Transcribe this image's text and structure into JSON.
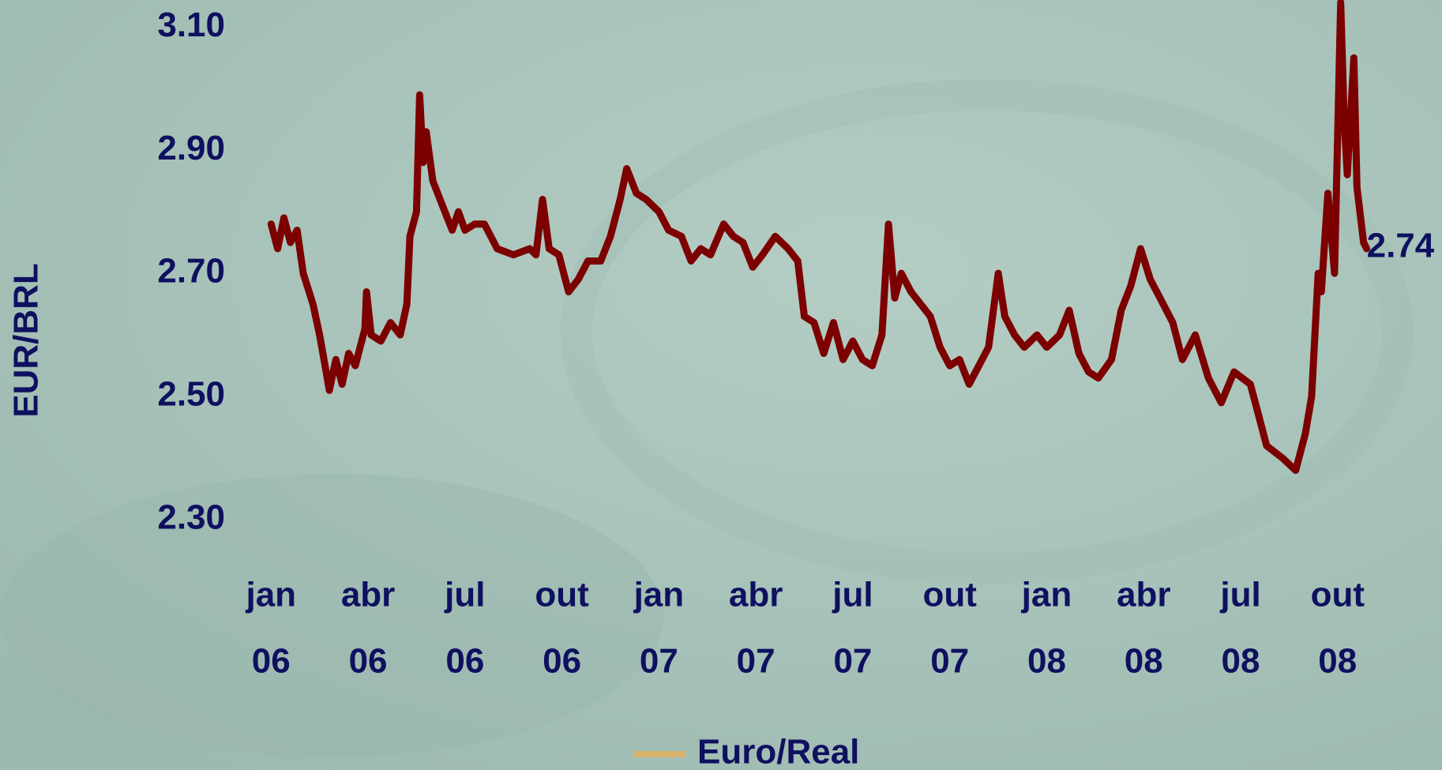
{
  "chart_data": {
    "type": "line",
    "y_label": "EUR/BRL",
    "x": [
      2006.0,
      2006.017,
      2006.033,
      2006.05,
      2006.067,
      2006.083,
      2006.108,
      2006.125,
      2006.142,
      2006.15,
      2006.167,
      2006.183,
      2006.2,
      2006.217,
      2006.242,
      2006.246,
      2006.258,
      2006.283,
      2006.308,
      2006.333,
      2006.35,
      2006.358,
      2006.375,
      2006.383,
      2006.392,
      2006.4,
      2006.417,
      2006.442,
      2006.467,
      2006.483,
      2006.5,
      2006.525,
      2006.55,
      2006.583,
      2006.625,
      2006.667,
      2006.683,
      2006.7,
      2006.717,
      2006.742,
      2006.767,
      2006.792,
      2006.817,
      2006.85,
      2006.875,
      2006.9,
      2006.917,
      2006.942,
      2006.967,
      2007.0,
      2007.025,
      2007.058,
      2007.083,
      2007.108,
      2007.133,
      2007.167,
      2007.192,
      2007.217,
      2007.242,
      2007.267,
      2007.3,
      2007.333,
      2007.358,
      2007.375,
      2007.4,
      2007.425,
      2007.45,
      2007.475,
      2007.5,
      2007.525,
      2007.55,
      2007.575,
      2007.592,
      2007.608,
      2007.625,
      2007.65,
      2007.675,
      2007.7,
      2007.725,
      2007.75,
      2007.775,
      2007.8,
      2007.825,
      2007.85,
      2007.875,
      2007.892,
      2007.917,
      2007.942,
      2007.975,
      2008.0,
      2008.033,
      2008.058,
      2008.083,
      2008.108,
      2008.133,
      2008.167,
      2008.192,
      2008.217,
      2008.242,
      2008.267,
      2008.292,
      2008.325,
      2008.35,
      2008.383,
      2008.417,
      2008.45,
      2008.483,
      2008.525,
      2008.542,
      2008.567,
      2008.608,
      2008.642,
      2008.667,
      2008.683,
      2008.7,
      2008.708,
      2008.725,
      2008.742,
      2008.758,
      2008.767,
      2008.775,
      2008.792,
      2008.8,
      2008.817,
      2008.825
    ],
    "series": [
      {
        "name": "Euro/Real",
        "color": "#7c0000",
        "legend_color": "#d9b36c",
        "values": [
          2.78,
          2.74,
          2.79,
          2.75,
          2.77,
          2.7,
          2.65,
          2.6,
          2.54,
          2.51,
          2.56,
          2.52,
          2.57,
          2.55,
          2.61,
          2.67,
          2.6,
          2.59,
          2.62,
          2.6,
          2.65,
          2.76,
          2.8,
          2.99,
          2.88,
          2.93,
          2.85,
          2.81,
          2.77,
          2.8,
          2.77,
          2.78,
          2.78,
          2.74,
          2.73,
          2.74,
          2.73,
          2.82,
          2.74,
          2.73,
          2.67,
          2.69,
          2.72,
          2.72,
          2.76,
          2.82,
          2.87,
          2.83,
          2.82,
          2.8,
          2.77,
          2.76,
          2.72,
          2.74,
          2.73,
          2.78,
          2.76,
          2.75,
          2.71,
          2.73,
          2.76,
          2.74,
          2.72,
          2.63,
          2.62,
          2.57,
          2.62,
          2.56,
          2.59,
          2.56,
          2.55,
          2.6,
          2.78,
          2.66,
          2.7,
          2.67,
          2.65,
          2.63,
          2.58,
          2.55,
          2.56,
          2.52,
          2.55,
          2.58,
          2.7,
          2.63,
          2.6,
          2.58,
          2.6,
          2.58,
          2.6,
          2.64,
          2.57,
          2.54,
          2.53,
          2.56,
          2.64,
          2.68,
          2.74,
          2.69,
          2.66,
          2.62,
          2.56,
          2.6,
          2.53,
          2.49,
          2.54,
          2.52,
          2.48,
          2.42,
          2.4,
          2.38,
          2.44,
          2.5,
          2.7,
          2.67,
          2.83,
          2.7,
          3.14,
          2.95,
          2.86,
          3.05,
          2.84,
          2.75,
          2.74
        ]
      }
    ],
    "end_label": true,
    "xlim": [
      2005.92,
      2008.95
    ],
    "xticks": [
      {
        "value": 2006.0,
        "label": [
          "jan",
          "06"
        ]
      },
      {
        "value": 2006.25,
        "label": [
          "abr",
          "06"
        ]
      },
      {
        "value": 2006.5,
        "label": [
          "jul",
          "06"
        ]
      },
      {
        "value": 2006.75,
        "label": [
          "out",
          "06"
        ]
      },
      {
        "value": 2007.0,
        "label": [
          "jan",
          "07"
        ]
      },
      {
        "value": 2007.25,
        "label": [
          "abr",
          "07"
        ]
      },
      {
        "value": 2007.5,
        "label": [
          "jul",
          "07"
        ]
      },
      {
        "value": 2007.75,
        "label": [
          "out",
          "07"
        ]
      },
      {
        "value": 2008.0,
        "label": [
          "jan",
          "08"
        ]
      },
      {
        "value": 2008.25,
        "label": [
          "abr",
          "08"
        ]
      },
      {
        "value": 2008.5,
        "label": [
          "jul",
          "08"
        ]
      },
      {
        "value": 2008.75,
        "label": [
          "out",
          "08"
        ]
      }
    ],
    "ylim": [
      2.2,
      3.14
    ],
    "yticks": [
      {
        "value": 2.3,
        "label": "2.30"
      },
      {
        "value": 2.5,
        "label": "2.50"
      },
      {
        "value": 2.7,
        "label": "2.70"
      },
      {
        "value": 2.9,
        "label": "2.90"
      },
      {
        "value": 3.1,
        "label": "3.10"
      }
    ],
    "grid": false
  }
}
